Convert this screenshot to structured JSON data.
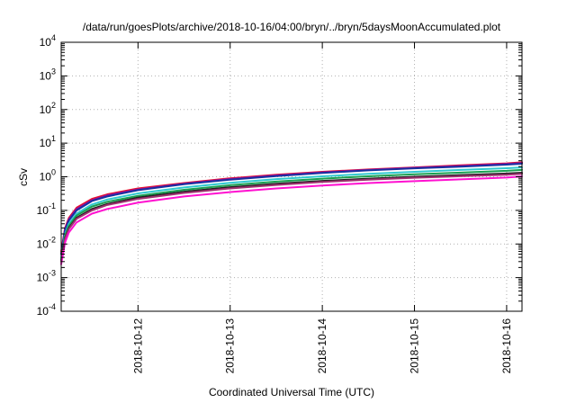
{
  "chart_data": {
    "type": "line",
    "title": "/data/run/goesPlots/archive/2018-10-16/04:00/bryn/../bryn/5daysMoonAccumulated.plot",
    "xlabel": "Coordinated Universal Time (UTC)",
    "ylabel": "cSv",
    "y_scale": "log",
    "ylim": [
      0.0001,
      10000
    ],
    "y_ticks": [
      {
        "value": 0.0001,
        "base": "10",
        "exp": "-4"
      },
      {
        "value": 0.001,
        "base": "10",
        "exp": "-3"
      },
      {
        "value": 0.01,
        "base": "10",
        "exp": "-2"
      },
      {
        "value": 0.1,
        "base": "10",
        "exp": "-1"
      },
      {
        "value": 1,
        "base": "10",
        "exp": "0"
      },
      {
        "value": 10,
        "base": "10",
        "exp": "1"
      },
      {
        "value": 100,
        "base": "10",
        "exp": "2"
      },
      {
        "value": 1000,
        "base": "10",
        "exp": "3"
      },
      {
        "value": 10000,
        "base": "10",
        "exp": "4"
      }
    ],
    "xlim": [
      "2018-10-11T04:00",
      "2018-10-16T04:00"
    ],
    "x_ticks": [
      "2018-10-12",
      "2018-10-13",
      "2018-10-14",
      "2018-10-15",
      "2018-10-16"
    ],
    "grid": true,
    "x": [
      "2018-10-11T04:00",
      "2018-10-11T05:00",
      "2018-10-11T06:00",
      "2018-10-11T08:00",
      "2018-10-11T12:00",
      "2018-10-11T16:00",
      "2018-10-12T00:00",
      "2018-10-12T12:00",
      "2018-10-13T00:00",
      "2018-10-13T12:00",
      "2018-10-14T00:00",
      "2018-10-14T12:00",
      "2018-10-15T00:00",
      "2018-10-15T12:00",
      "2018-10-16T00:00",
      "2018-10-16T04:00"
    ],
    "series": [
      {
        "color": "#e8102c",
        "values": [
          0.006,
          0.03,
          0.06,
          0.12,
          0.22,
          0.3,
          0.45,
          0.65,
          0.9,
          1.15,
          1.4,
          1.65,
          1.9,
          2.2,
          2.5,
          2.7
        ]
      },
      {
        "color": "#9010a0",
        "values": [
          0.005,
          0.028,
          0.055,
          0.11,
          0.2,
          0.28,
          0.42,
          0.62,
          0.86,
          1.1,
          1.35,
          1.6,
          1.85,
          2.1,
          2.4,
          2.55
        ]
      },
      {
        "color": "#1830a0",
        "values": [
          0.005,
          0.026,
          0.05,
          0.1,
          0.19,
          0.26,
          0.4,
          0.6,
          0.82,
          1.05,
          1.3,
          1.55,
          1.78,
          2.0,
          2.3,
          2.45
        ]
      },
      {
        "color": "#30c8d0",
        "values": [
          0.004,
          0.02,
          0.04,
          0.08,
          0.15,
          0.21,
          0.32,
          0.48,
          0.66,
          0.85,
          1.03,
          1.22,
          1.4,
          1.6,
          1.8,
          1.9
        ]
      },
      {
        "color": "#18a050",
        "values": [
          0.0035,
          0.018,
          0.035,
          0.07,
          0.13,
          0.18,
          0.27,
          0.41,
          0.56,
          0.72,
          0.88,
          1.03,
          1.18,
          1.33,
          1.5,
          1.6
        ]
      },
      {
        "color": "#202020",
        "values": [
          0.003,
          0.015,
          0.03,
          0.06,
          0.11,
          0.155,
          0.24,
          0.36,
          0.49,
          0.62,
          0.75,
          0.88,
          1.0,
          1.12,
          1.25,
          1.32
        ]
      },
      {
        "color": "#a03070",
        "values": [
          0.003,
          0.014,
          0.028,
          0.056,
          0.1,
          0.145,
          0.22,
          0.33,
          0.45,
          0.57,
          0.7,
          0.82,
          0.93,
          1.04,
          1.15,
          1.22
        ]
      },
      {
        "color": "#ff10d0",
        "values": [
          0.0025,
          0.011,
          0.022,
          0.044,
          0.08,
          0.11,
          0.17,
          0.26,
          0.35,
          0.45,
          0.55,
          0.65,
          0.74,
          0.84,
          0.95,
          1.02
        ]
      }
    ]
  }
}
